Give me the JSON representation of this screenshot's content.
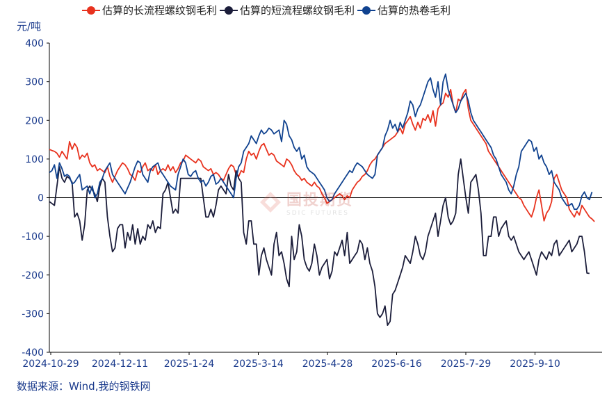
{
  "chart_data": {
    "type": "line",
    "title": "",
    "ylabel": "元/吨",
    "xlabel": "",
    "ylim": [
      -400,
      400
    ],
    "yticks": [
      400,
      300,
      200,
      100,
      0,
      -100,
      -200,
      -300,
      -400
    ],
    "xtick_labels": [
      "2024-10-29",
      "2024-12-11",
      "2025-1-24",
      "2025-3-14",
      "2025-4-28",
      "2025-6-16",
      "2025-7-29",
      "2025-9-10"
    ],
    "x_points_total": 220,
    "legend_position": "top",
    "series": [
      {
        "name": "估算的长流程螺纹钢毛利",
        "color": "#e8321e",
        "values": [
          125,
          122,
          120,
          115,
          105,
          120,
          110,
          100,
          145,
          125,
          140,
          130,
          100,
          110,
          105,
          115,
          90,
          80,
          85,
          70,
          75,
          70,
          65,
          80,
          55,
          40,
          55,
          70,
          80,
          90,
          85,
          75,
          60,
          55,
          45,
          70,
          65,
          80,
          90,
          70,
          75,
          70,
          85,
          60,
          70,
          75,
          70,
          85,
          70,
          80,
          65,
          75,
          90,
          95,
          110,
          105,
          100,
          95,
          90,
          100,
          95,
          80,
          75,
          70,
          75,
          60,
          65,
          60,
          50,
          45,
          60,
          75,
          85,
          80,
          60,
          55,
          70,
          65,
          100,
          120,
          110,
          115,
          100,
          120,
          135,
          140,
          125,
          110,
          115,
          110,
          95,
          90,
          85,
          80,
          100,
          95,
          85,
          70,
          60,
          55,
          45,
          50,
          40,
          35,
          30,
          40,
          30,
          25,
          10,
          0,
          -15,
          -10,
          -5,
          0,
          5,
          10,
          5,
          -5,
          5,
          0,
          20,
          30,
          40,
          45,
          55,
          60,
          70,
          85,
          95,
          100,
          110,
          120,
          130,
          140,
          145,
          150,
          155,
          160,
          170,
          180,
          165,
          190,
          200,
          210,
          190,
          175,
          195,
          180,
          205,
          200,
          215,
          195,
          225,
          185,
          230,
          240,
          245,
          270,
          260,
          280,
          240,
          220,
          255,
          250,
          270,
          280,
          230,
          200,
          190,
          180,
          170,
          160,
          150,
          140,
          120,
          110,
          100,
          90,
          80,
          70,
          60,
          50,
          40,
          30,
          20,
          10,
          0,
          -5,
          -20,
          -30,
          -40,
          -50,
          -30,
          0,
          20,
          -20,
          -60,
          -40,
          -30,
          -10,
          50,
          60,
          40,
          20,
          10,
          0,
          -30,
          -40,
          -50,
          -35,
          -45,
          -20,
          -30,
          -40,
          -50,
          -55,
          -62
        ]
      },
      {
        "name": "估算的短流程螺纹钢毛利",
        "color": "#1b1d3a",
        "values": [
          -10,
          -15,
          -20,
          30,
          80,
          50,
          40,
          55,
          50,
          40,
          -50,
          -40,
          -60,
          -110,
          -70,
          20,
          30,
          20,
          10,
          -10,
          30,
          50,
          40,
          -50,
          -100,
          -140,
          -130,
          -80,
          -70,
          -70,
          -130,
          -90,
          -110,
          -70,
          -120,
          -80,
          -120,
          -100,
          -110,
          -70,
          -80,
          -60,
          -90,
          -75,
          -80,
          10,
          20,
          40,
          0,
          -40,
          -30,
          -40,
          50,
          50,
          50,
          50,
          50,
          50,
          50,
          50,
          50,
          0,
          -50,
          -50,
          -30,
          -50,
          -20,
          20,
          30,
          20,
          10,
          60,
          30,
          20,
          70,
          50,
          40,
          -90,
          -120,
          -60,
          -60,
          -120,
          -120,
          -200,
          -150,
          -130,
          -160,
          -180,
          -200,
          -120,
          -90,
          -150,
          -140,
          -170,
          -210,
          -230,
          -100,
          -160,
          -140,
          -70,
          -100,
          -160,
          -180,
          -190,
          -170,
          -120,
          -150,
          -200,
          -180,
          -170,
          -160,
          -210,
          -190,
          -140,
          -150,
          -130,
          -110,
          -150,
          -90,
          -170,
          -160,
          -150,
          -140,
          -110,
          -120,
          -160,
          -130,
          -170,
          -190,
          -230,
          -300,
          -310,
          -300,
          -280,
          -330,
          -320,
          -250,
          -240,
          -220,
          -200,
          -180,
          -150,
          -160,
          -170,
          -140,
          -100,
          -120,
          -150,
          -160,
          -140,
          -100,
          -80,
          -60,
          -40,
          -100,
          -60,
          -20,
          0,
          -50,
          -70,
          -60,
          -40,
          60,
          100,
          50,
          0,
          -40,
          40,
          50,
          60,
          20,
          -40,
          -150,
          -150,
          -100,
          -100,
          -50,
          -50,
          -100,
          -80,
          -70,
          -60,
          -100,
          -110,
          -100,
          -120,
          -140,
          -150,
          -160,
          -150,
          -140,
          -160,
          -180,
          -200,
          -160,
          -140,
          -150,
          -160,
          -140,
          -150,
          -120,
          -110,
          -150,
          -140,
          -130,
          -120,
          -110,
          -140,
          -130,
          -120,
          -100,
          -100,
          -140,
          -195,
          -196
        ]
      },
      {
        "name": "估算的热卷毛利",
        "color": "#10428f",
        "values": [
          65,
          70,
          85,
          50,
          90,
          75,
          55,
          60,
          55,
          35,
          40,
          50,
          60,
          20,
          25,
          30,
          10,
          30,
          0,
          10,
          40,
          50,
          70,
          80,
          90,
          60,
          50,
          40,
          30,
          20,
          10,
          25,
          40,
          60,
          80,
          95,
          90,
          60,
          50,
          40,
          70,
          80,
          85,
          90,
          70,
          60,
          50,
          40,
          30,
          25,
          20,
          60,
          80,
          100,
          90,
          60,
          55,
          65,
          70,
          50,
          40,
          45,
          30,
          40,
          55,
          60,
          35,
          40,
          50,
          40,
          30,
          20,
          10,
          0,
          50,
          80,
          90,
          120,
          130,
          140,
          160,
          150,
          140,
          160,
          175,
          165,
          170,
          180,
          175,
          165,
          170,
          175,
          145,
          200,
          190,
          160,
          150,
          130,
          120,
          130,
          100,
          110,
          80,
          70,
          65,
          60,
          50,
          40,
          30,
          20,
          0,
          -10,
          -5,
          10,
          20,
          30,
          40,
          50,
          60,
          70,
          65,
          80,
          90,
          85,
          80,
          70,
          60,
          55,
          50,
          60,
          110,
          120,
          130,
          160,
          175,
          200,
          180,
          190,
          170,
          195,
          180,
          200,
          220,
          250,
          240,
          210,
          230,
          240,
          260,
          280,
          300,
          310,
          280,
          260,
          300,
          240,
          300,
          320,
          280,
          260,
          240,
          220,
          230,
          250,
          260,
          270,
          250,
          220,
          200,
          190,
          180,
          170,
          160,
          150,
          140,
          130,
          110,
          100,
          80,
          60,
          50,
          40,
          20,
          10,
          30,
          60,
          80,
          120,
          130,
          140,
          150,
          145,
          120,
          130,
          100,
          110,
          90,
          80,
          60,
          70,
          40,
          30,
          20,
          0,
          -10,
          -20,
          -20,
          -15,
          -30,
          -30,
          -20,
          5,
          15,
          0,
          -5,
          15
        ]
      }
    ]
  },
  "unit_label": "元/吨",
  "source_text": "数据来源：Wind,我的钢铁网",
  "watermark": {
    "cn": "国投期货",
    "en": "SDIC FUTURES"
  },
  "colors": {
    "axis_text": "#1a3a8c",
    "zero_line": "#000000"
  }
}
